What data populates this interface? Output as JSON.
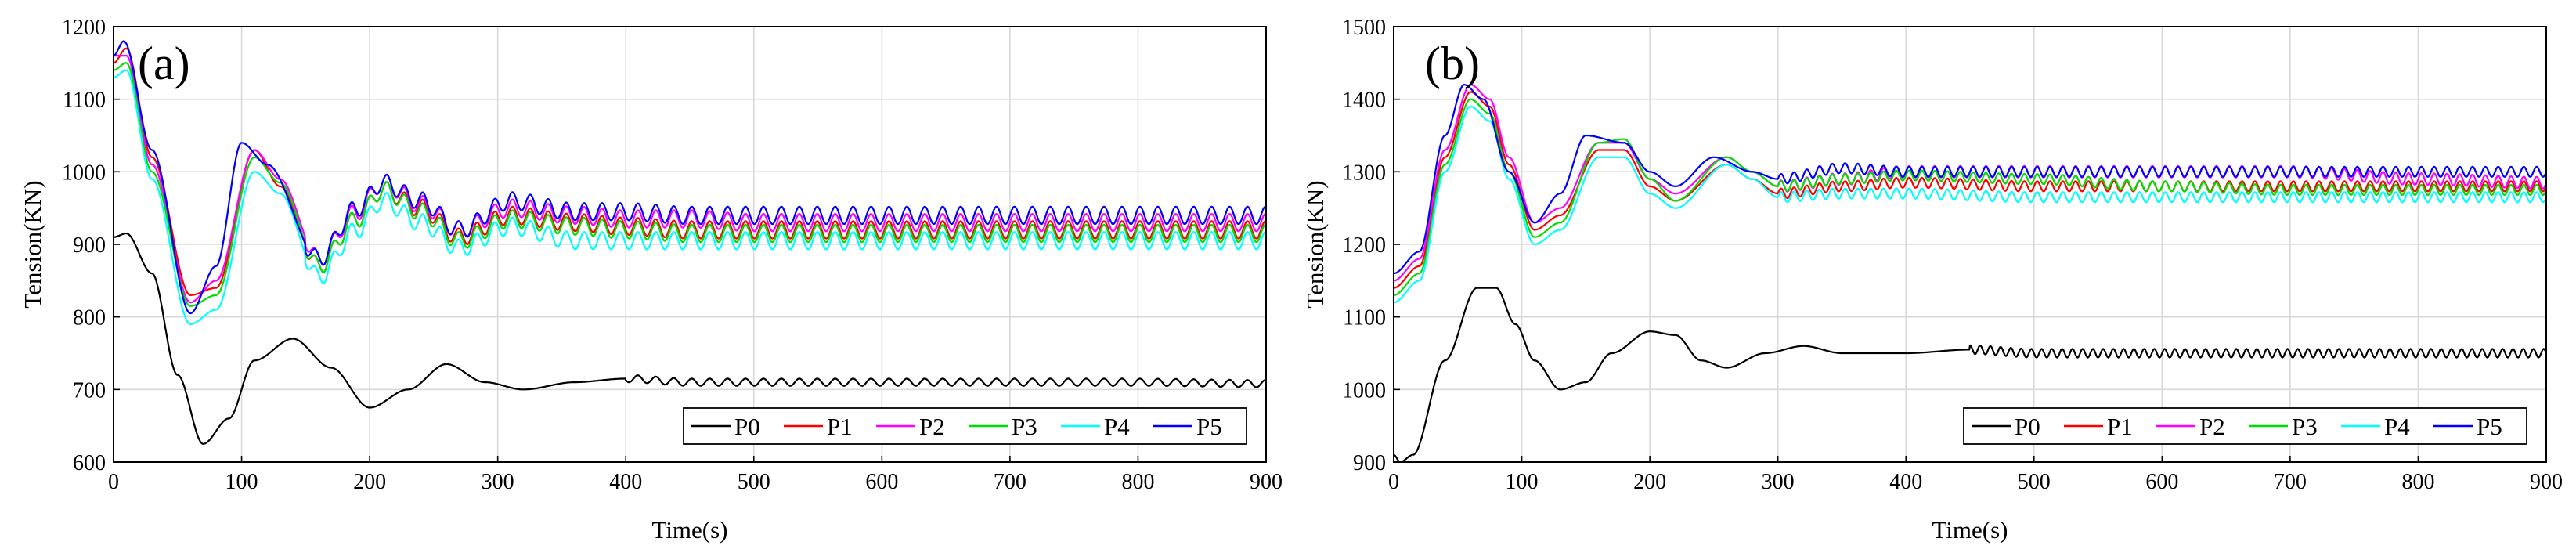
{
  "figure": {
    "panels": [
      "(a)",
      "(b)"
    ]
  },
  "chart_data": [
    {
      "type": "line",
      "panel_label": "(a)",
      "xlabel": "Time(s)",
      "ylabel": "Tension(KN)",
      "xlim": [
        0,
        900
      ],
      "ylim": [
        600,
        1200
      ],
      "xticks": [
        0,
        100,
        200,
        300,
        400,
        500,
        600,
        700,
        800,
        900
      ],
      "yticks": [
        600,
        700,
        800,
        900,
        1000,
        1100,
        1200
      ],
      "grid": true,
      "legend": {
        "position": "bottom-right",
        "orientation": "horizontal"
      },
      "series": [
        {
          "name": "P0",
          "color": "#000000",
          "x": [
            0,
            10,
            30,
            50,
            70,
            90,
            110,
            140,
            170,
            200,
            230,
            260,
            290,
            320,
            360,
            400,
            450,
            500,
            600,
            700,
            800,
            900
          ],
          "y": [
            910,
            915,
            860,
            720,
            625,
            660,
            740,
            770,
            730,
            675,
            700,
            735,
            710,
            700,
            710,
            715,
            710,
            710,
            710,
            710,
            710,
            708
          ],
          "osc": {
            "amp": 5,
            "period": 14,
            "start": 400
          }
        },
        {
          "name": "P1",
          "color": "#ff0000",
          "x": [
            0,
            10,
            30,
            60,
            80,
            110,
            130,
            160,
            190,
            210,
            240,
            270,
            310,
            360,
            400,
            450,
            500,
            600,
            700,
            800,
            900
          ],
          "y": [
            1150,
            1170,
            1020,
            830,
            840,
            1030,
            980,
            870,
            935,
            975,
            950,
            910,
            940,
            930,
            925,
            920,
            920,
            920,
            920,
            920,
            920
          ],
          "osc": {
            "amp": 12,
            "period": 14,
            "start": 150
          }
        },
        {
          "name": "P2",
          "color": "#ff00ff",
          "x": [
            0,
            10,
            30,
            60,
            80,
            110,
            130,
            160,
            190,
            210,
            240,
            270,
            310,
            360,
            400,
            450,
            500,
            600,
            700,
            800,
            900
          ],
          "y": [
            1160,
            1160,
            1010,
            820,
            850,
            1030,
            990,
            880,
            945,
            985,
            955,
            920,
            950,
            940,
            935,
            935,
            930,
            930,
            930,
            930,
            930
          ],
          "osc": {
            "amp": 12,
            "period": 14,
            "start": 150
          }
        },
        {
          "name": "P3",
          "color": "#00dd00",
          "x": [
            0,
            10,
            30,
            60,
            80,
            110,
            130,
            160,
            190,
            210,
            240,
            270,
            310,
            360,
            400,
            450,
            500,
            600,
            700,
            800,
            900
          ],
          "y": [
            1140,
            1150,
            1000,
            815,
            830,
            1020,
            985,
            870,
            935,
            975,
            945,
            905,
            935,
            925,
            920,
            915,
            915,
            915,
            915,
            915,
            915
          ],
          "osc": {
            "amp": 12,
            "period": 14,
            "start": 150
          }
        },
        {
          "name": "P4",
          "color": "#00ffff",
          "x": [
            0,
            10,
            30,
            60,
            80,
            110,
            130,
            160,
            190,
            210,
            240,
            270,
            310,
            360,
            400,
            450,
            500,
            600,
            700,
            800,
            900
          ],
          "y": [
            1130,
            1140,
            990,
            790,
            810,
            1000,
            970,
            855,
            920,
            960,
            930,
            895,
            925,
            905,
            905,
            905,
            905,
            905,
            905,
            905,
            905
          ],
          "osc": {
            "amp": 12,
            "period": 14,
            "start": 150
          }
        },
        {
          "name": "P5",
          "color": "#0000ff",
          "x": [
            0,
            8,
            30,
            60,
            80,
            100,
            120,
            160,
            190,
            210,
            240,
            270,
            310,
            360,
            400,
            450,
            500,
            600,
            700,
            800,
            900
          ],
          "y": [
            1160,
            1180,
            1030,
            805,
            870,
            1040,
            1010,
            880,
            950,
            985,
            960,
            920,
            960,
            945,
            945,
            940,
            940,
            940,
            940,
            940,
            940
          ],
          "osc": {
            "amp": 12,
            "period": 14,
            "start": 150
          }
        }
      ]
    },
    {
      "type": "line",
      "panel_label": "(b)",
      "xlabel": "Time(s)",
      "ylabel": "Tension(KN)",
      "xlim": [
        0,
        900
      ],
      "ylim": [
        900,
        1500
      ],
      "xticks": [
        0,
        100,
        200,
        300,
        400,
        500,
        600,
        700,
        800,
        900
      ],
      "yticks": [
        900,
        1000,
        1100,
        1200,
        1300,
        1400,
        1500
      ],
      "grid": true,
      "legend": {
        "position": "bottom-right",
        "orientation": "horizontal"
      },
      "series": [
        {
          "name": "P0",
          "color": "#000000",
          "x": [
            0,
            5,
            15,
            40,
            65,
            80,
            95,
            110,
            130,
            150,
            170,
            200,
            220,
            240,
            260,
            290,
            320,
            350,
            400,
            450,
            500,
            600,
            700,
            800,
            900
          ],
          "y": [
            910,
            900,
            910,
            1040,
            1140,
            1140,
            1090,
            1040,
            1000,
            1010,
            1050,
            1080,
            1075,
            1040,
            1030,
            1050,
            1060,
            1050,
            1050,
            1055,
            1050,
            1050,
            1050,
            1050,
            1050
          ],
          "osc": {
            "amp": 6,
            "period": 8,
            "start": 450
          }
        },
        {
          "name": "P1",
          "color": "#ff0000",
          "x": [
            0,
            20,
            40,
            60,
            75,
            90,
            110,
            130,
            160,
            180,
            200,
            220,
            260,
            280,
            300,
            350,
            400,
            500,
            600,
            700,
            800,
            900
          ],
          "y": [
            1140,
            1170,
            1320,
            1410,
            1390,
            1310,
            1220,
            1240,
            1330,
            1330,
            1280,
            1260,
            1310,
            1290,
            1270,
            1280,
            1285,
            1280,
            1280,
            1280,
            1280,
            1280
          ],
          "osc": {
            "amp": 7,
            "period": 10,
            "start": 300
          }
        },
        {
          "name": "P2",
          "color": "#ff00ff",
          "x": [
            0,
            20,
            40,
            60,
            75,
            90,
            110,
            130,
            160,
            180,
            200,
            220,
            260,
            280,
            300,
            350,
            400,
            500,
            600,
            700,
            800,
            900
          ],
          "y": [
            1150,
            1180,
            1330,
            1420,
            1400,
            1320,
            1230,
            1250,
            1340,
            1340,
            1290,
            1270,
            1320,
            1300,
            1280,
            1290,
            1300,
            1300,
            1300,
            1300,
            1290,
            1285
          ],
          "osc": {
            "amp": 8,
            "period": 10,
            "start": 300
          }
        },
        {
          "name": "P3",
          "color": "#00dd00",
          "x": [
            0,
            20,
            40,
            60,
            75,
            90,
            110,
            130,
            160,
            180,
            200,
            220,
            260,
            280,
            300,
            350,
            400,
            500,
            600,
            700,
            800,
            900
          ],
          "y": [
            1130,
            1160,
            1310,
            1400,
            1380,
            1300,
            1210,
            1230,
            1340,
            1345,
            1290,
            1260,
            1320,
            1300,
            1280,
            1290,
            1295,
            1290,
            1280,
            1275,
            1275,
            1275
          ],
          "osc": {
            "amp": 7,
            "period": 10,
            "start": 300
          }
        },
        {
          "name": "P4",
          "color": "#00ffff",
          "x": [
            0,
            20,
            40,
            60,
            75,
            90,
            110,
            130,
            160,
            180,
            200,
            220,
            260,
            280,
            300,
            350,
            400,
            500,
            600,
            700,
            800,
            900
          ],
          "y": [
            1120,
            1150,
            1300,
            1390,
            1370,
            1290,
            1200,
            1220,
            1320,
            1320,
            1270,
            1250,
            1310,
            1290,
            1265,
            1270,
            1270,
            1265,
            1265,
            1265,
            1265,
            1265
          ],
          "osc": {
            "amp": 7,
            "period": 10,
            "start": 300
          }
        },
        {
          "name": "P5",
          "color": "#0000ff",
          "x": [
            0,
            20,
            40,
            55,
            70,
            90,
            110,
            130,
            150,
            180,
            200,
            220,
            250,
            280,
            300,
            350,
            400,
            500,
            600,
            700,
            800,
            900
          ],
          "y": [
            1160,
            1190,
            1350,
            1420,
            1400,
            1300,
            1230,
            1270,
            1350,
            1340,
            1300,
            1280,
            1320,
            1300,
            1290,
            1305,
            1300,
            1300,
            1300,
            1300,
            1300,
            1300
          ],
          "osc": {
            "amp": 7,
            "period": 10,
            "start": 300
          }
        }
      ]
    }
  ]
}
